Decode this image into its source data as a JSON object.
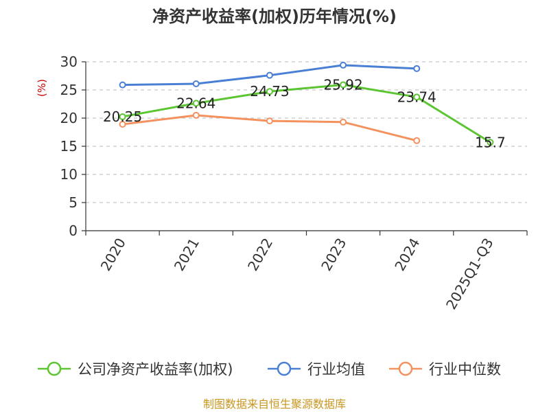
{
  "chart_data": {
    "type": "line",
    "title": "净资产收益率(加权)历年情况(%)",
    "ylabel": "(%)",
    "xlabel": "",
    "categories": [
      "2020",
      "2021",
      "2022",
      "2023",
      "2024",
      "2025Q1-Q3"
    ],
    "ylim": [
      0,
      30
    ],
    "yticks": [
      0,
      5,
      10,
      15,
      20,
      25,
      30
    ],
    "grid": true,
    "legend_position": "bottom",
    "series": [
      {
        "name": "公司净资产收益率(加权)",
        "color": "#5cc532",
        "values": [
          20.25,
          22.64,
          24.73,
          25.92,
          23.74,
          15.7
        ],
        "labels": [
          "20.25",
          "22.64",
          "24.73",
          "25.92",
          "23.74",
          "15.7"
        ]
      },
      {
        "name": "行业均值",
        "color": "#4a7fd6",
        "values": [
          25.9,
          26.1,
          27.6,
          29.4,
          28.8,
          null
        ]
      },
      {
        "name": "行业中位数",
        "color": "#f4925e",
        "values": [
          18.9,
          20.5,
          19.5,
          19.3,
          16.0,
          null
        ]
      }
    ],
    "source": "制图数据来自恒生聚源数据库",
    "source_color": "#c8961e",
    "ylabel_color": "#cc0000"
  }
}
